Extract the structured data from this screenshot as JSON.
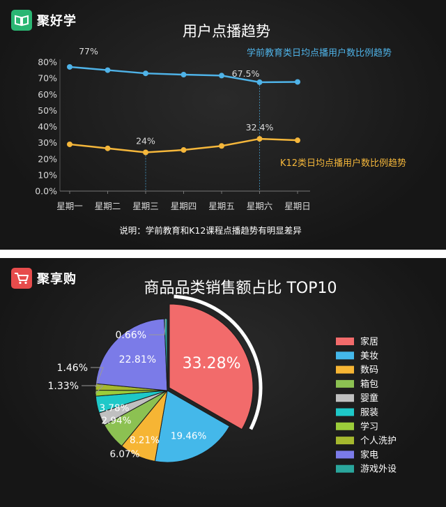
{
  "panel1": {
    "brand": "聚好学",
    "brand_color": "#2bb673",
    "note": "说明：学前教育和K12课程点播趋势有明显差异"
  },
  "panel2": {
    "brand": "聚享购",
    "brand_color": "#e74c4c"
  },
  "chart_data": [
    {
      "type": "line",
      "title": "用户点播趋势",
      "categories": [
        "星期一",
        "星期二",
        "星期三",
        "星期四",
        "星期五",
        "星期六",
        "星期日"
      ],
      "y_ticks": [
        "0.0%",
        "10%",
        "20%",
        "30%",
        "40%",
        "50%",
        "60%",
        "70%",
        "80%"
      ],
      "ylim": [
        0,
        80
      ],
      "series": [
        {
          "name": "学前教育类日均点播用户数比例趋势",
          "color": "#4fb3e8",
          "values": [
            77,
            75,
            73,
            72.2,
            71.6,
            67.5,
            67.7
          ]
        },
        {
          "name": "K12类日均点播用户数比例趋势",
          "color": "#f5b73b",
          "values": [
            29,
            26.5,
            24,
            25.5,
            28,
            32.4,
            31.5
          ]
        }
      ],
      "annotations": [
        {
          "series": 0,
          "index": 0,
          "text": "77%"
        },
        {
          "series": 0,
          "index": 5,
          "text": "67.5%"
        },
        {
          "series": 1,
          "index": 2,
          "text": "24%"
        },
        {
          "series": 1,
          "index": 5,
          "text": "32.4%"
        }
      ]
    },
    {
      "type": "pie",
      "title": "商品品类销售额占比 TOP10",
      "slices": [
        {
          "name": "家居",
          "value": 33.28,
          "color": "#f26b6b",
          "label": "33.28%"
        },
        {
          "name": "美妆",
          "value": 19.46,
          "color": "#44b8ea",
          "label": "19.46%"
        },
        {
          "name": "数码",
          "value": 8.21,
          "color": "#f6b534",
          "label": "8.21%"
        },
        {
          "name": "箱包",
          "value": 6.07,
          "color": "#8cc152",
          "label": "6.07%"
        },
        {
          "name": "婴童",
          "value": 2.94,
          "color": "#c0c0c0",
          "label": "2.94%"
        },
        {
          "name": "服装",
          "value": 3.78,
          "color": "#1ec8c8",
          "label": "3.78%"
        },
        {
          "name": "学习",
          "value": 1.33,
          "color": "#9ccc3a",
          "label": "1.33%"
        },
        {
          "name": "个人洗护",
          "value": 1.46,
          "color": "#a5b82e",
          "label": "1.46%"
        },
        {
          "name": "家电",
          "value": 22.81,
          "color": "#7b7be8",
          "label": "22.81%"
        },
        {
          "name": "游戏外设",
          "value": 0.66,
          "color": "#2aa69c",
          "label": "0.66%"
        }
      ]
    }
  ]
}
